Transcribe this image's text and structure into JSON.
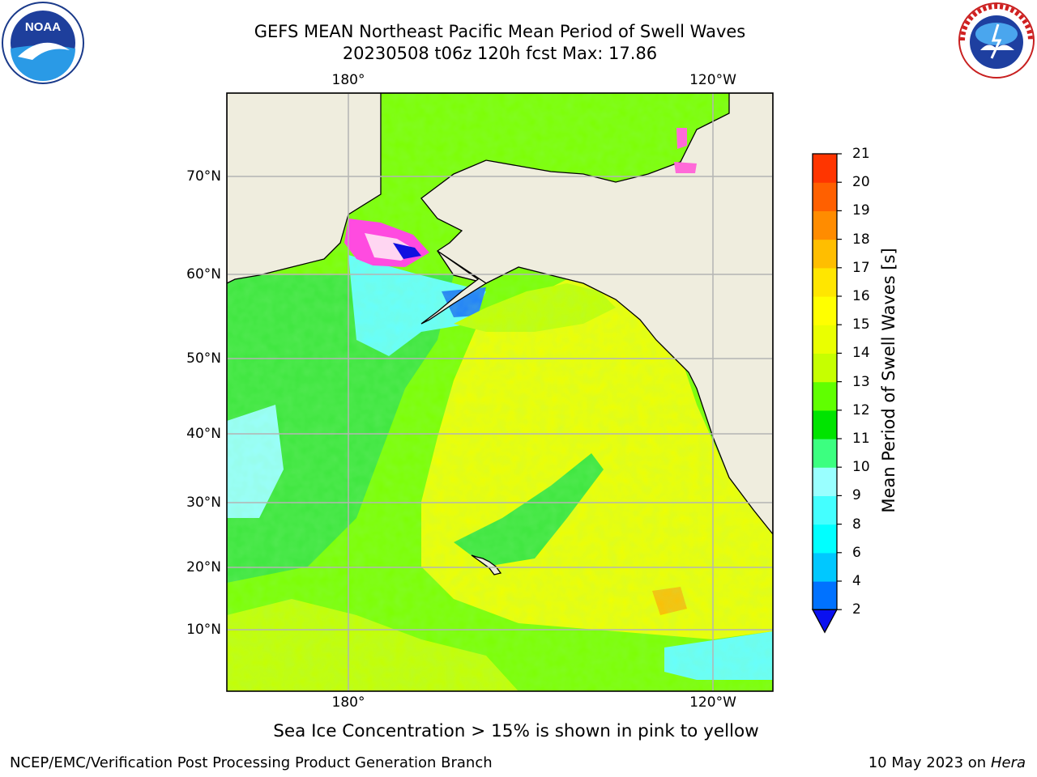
{
  "header": {
    "title_line1": "GEFS MEAN Northeast Pacific Mean Period of Swell Waves",
    "title_line2": "20230508 t06z 120h fcst   Max: 17.86"
  },
  "logos": {
    "noaa": {
      "text": "NOAA",
      "ring_text": "NATIONAL OCEANIC AND ATMOSPHERIC ADMINISTRATION · U.S. DEPARTMENT OF COMMERCE"
    },
    "nws": {
      "ring_text": "NATIONAL WEATHER SERVICE"
    }
  },
  "map": {
    "lon_labels": [
      "180°",
      "120°W"
    ],
    "lat_labels": [
      "70°N",
      "60°N",
      "50°N",
      "40°N",
      "30°N",
      "20°N",
      "10°N"
    ],
    "land_color": "#efedde",
    "grid_color": "#b4b4b4"
  },
  "colorbar": {
    "label": "Mean Period of Swell Waves [s]",
    "ticks": [
      "2",
      "4",
      "6",
      "8",
      "9",
      "10",
      "11",
      "12",
      "13",
      "14",
      "15",
      "16",
      "17",
      "18",
      "19",
      "20",
      "21"
    ],
    "colors": [
      "#0072ff",
      "#00c8ff",
      "#00ffff",
      "#44ffff",
      "#99ffff",
      "#3cff80",
      "#00e400",
      "#60ff00",
      "#c6ff00",
      "#eaff00",
      "#ffff00",
      "#ffe600",
      "#ffbe00",
      "#ff8c00",
      "#ff6000",
      "#ff3500",
      "#ff0000"
    ],
    "under_color": "#0a10f0"
  },
  "footer": {
    "ice_note": "Sea Ice Concentration > 15% is shown in pink to yellow",
    "credit": "NCEP/EMC/Verification Post Processing Product Generation Branch",
    "date": "10 May 2023 on",
    "machine": "Hera"
  }
}
